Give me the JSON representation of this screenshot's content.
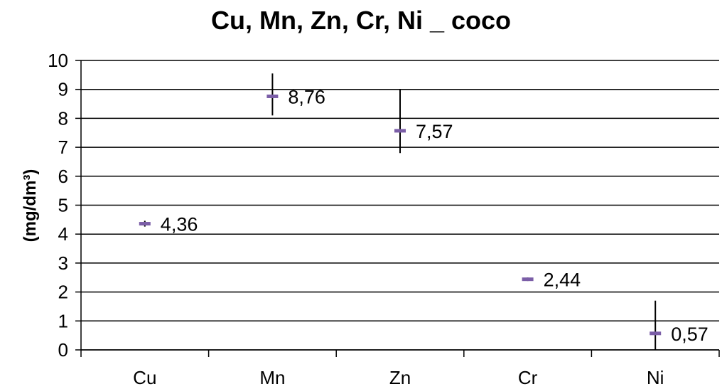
{
  "chart_data": {
    "type": "scatter",
    "title": "Cu, Mn, Zn, Cr, Ni _ coco",
    "xlabel": "",
    "ylabel": "(mg/dm³)",
    "ylim": [
      0,
      10
    ],
    "yticks": [
      0,
      1,
      2,
      3,
      4,
      5,
      6,
      7,
      8,
      9,
      10
    ],
    "grid": true,
    "legend": "none",
    "categories": [
      "Cu",
      "Mn",
      "Zn",
      "Cr",
      "Ni"
    ],
    "values": [
      4.36,
      8.76,
      7.57,
      2.44,
      0.57
    ],
    "data_labels": [
      "4,36",
      "8,76",
      "7,57",
      "2,44",
      "0,57"
    ],
    "error_low": [
      4.26,
      8.1,
      6.8,
      2.38,
      0.0
    ],
    "error_high": [
      4.46,
      9.55,
      9.0,
      2.5,
      1.7
    ],
    "marker_color": "#7B5EA7",
    "errorbar_color": "#000000",
    "grid_color": "#000000"
  }
}
